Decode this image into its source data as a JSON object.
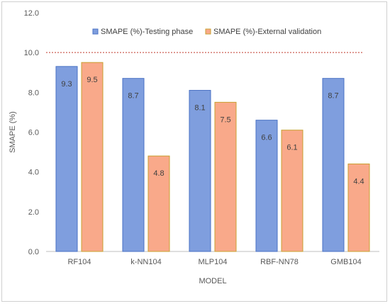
{
  "chart_data": {
    "type": "bar",
    "categories": [
      "RF104",
      "k-NN104",
      "MLP104",
      "RBF-NN78",
      "GMB104"
    ],
    "series": [
      {
        "name": "SMAPE (%)-Testing phase",
        "values": [
          9.3,
          8.7,
          8.1,
          6.6,
          8.7
        ],
        "color": "#7f9ede",
        "stroke": "#4a72c4"
      },
      {
        "name": "SMAPE (%)-External validation",
        "values": [
          9.5,
          4.8,
          7.5,
          6.1,
          4.4
        ],
        "color": "#f9a98a",
        "stroke": "#c9a030"
      }
    ],
    "data_labels": [
      [
        "9.3",
        "8.7",
        "8.1",
        "6.6",
        "8.7"
      ],
      [
        "9.5",
        "4.8",
        "7.5",
        "6.1",
        "4.4"
      ]
    ],
    "xlabel": "MODEL",
    "ylabel": "SMAPE (%)",
    "ylim": [
      0,
      12
    ],
    "yticks": [
      "0.0",
      "2.0",
      "4.0",
      "6.0",
      "8.0",
      "10.0",
      "12.0"
    ],
    "reference_line": {
      "value": 10.0,
      "color": "#c0392b",
      "style": "dotted"
    },
    "grid": false,
    "legend_position": "top-right"
  }
}
